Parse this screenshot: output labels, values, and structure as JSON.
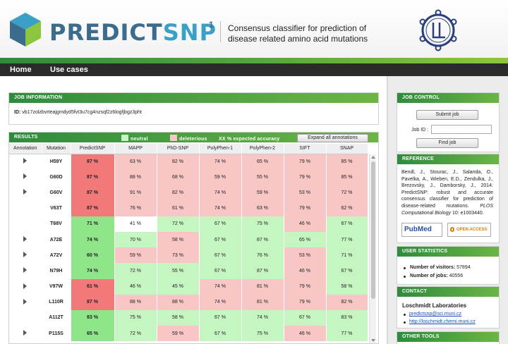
{
  "header": {
    "logo_text_a": "PREDICT",
    "logo_text_b": "SNP",
    "logo_sup": "1",
    "tagline": "Consensus classifier for prediction of disease related amino acid mutations"
  },
  "nav": {
    "items": [
      {
        "label": "Home"
      },
      {
        "label": "Use cases"
      }
    ]
  },
  "job_information": {
    "title": "JOB INFORMATION",
    "id_label": "ID:",
    "id_value": "vb17zolzbvrteajgmdyd5fvt3u7cg4nzsqf2z6logfjbgz3pht"
  },
  "results": {
    "title": "RESULTS",
    "legend": {
      "neutral": "neutral",
      "deleterious": "deleterious",
      "accuracy_label": "XX % expected accuracy",
      "accuracy_bold": "XX %"
    },
    "legend_colors": {
      "neutral": "#c5f5c0",
      "deleterious": "#f9c6c6"
    },
    "expand_button": "Expand all annotations",
    "columns": [
      "Annotation",
      "Mutation",
      "PredictSNP",
      "MAPP",
      "PhD-SNP",
      "PolyPhen-1",
      "PolyPhen-2",
      "SIFT",
      "SNAP"
    ],
    "rows": [
      {
        "annot": true,
        "mutation": "H59Y",
        "cells": [
          [
            "87 %",
            "D"
          ],
          [
            "63 %",
            "D"
          ],
          [
            "82 %",
            "D"
          ],
          [
            "74 %",
            "D"
          ],
          [
            "65 %",
            "D"
          ],
          [
            "79 %",
            "D"
          ],
          [
            "85 %",
            "D"
          ]
        ]
      },
      {
        "annot": true,
        "mutation": "G60D",
        "cells": [
          [
            "87 %",
            "D"
          ],
          [
            "88 %",
            "D"
          ],
          [
            "68 %",
            "D"
          ],
          [
            "59 %",
            "D"
          ],
          [
            "55 %",
            "D"
          ],
          [
            "79 %",
            "D"
          ],
          [
            "85 %",
            "D"
          ]
        ]
      },
      {
        "annot": true,
        "mutation": "G60V",
        "cells": [
          [
            "87 %",
            "D"
          ],
          [
            "91 %",
            "D"
          ],
          [
            "82 %",
            "D"
          ],
          [
            "74 %",
            "D"
          ],
          [
            "59 %",
            "D"
          ],
          [
            "53 %",
            "D"
          ],
          [
            "72 %",
            "D"
          ]
        ]
      },
      {
        "annot": false,
        "mutation": "V63T",
        "cells": [
          [
            "87 %",
            "D"
          ],
          [
            "76 %",
            "D"
          ],
          [
            "61 %",
            "D"
          ],
          [
            "74 %",
            "D"
          ],
          [
            "63 %",
            "D"
          ],
          [
            "79 %",
            "D"
          ],
          [
            "62 %",
            "D"
          ]
        ]
      },
      {
        "annot": false,
        "mutation": "T68V",
        "cells": [
          [
            "71 %",
            "N"
          ],
          [
            "41 %",
            "B"
          ],
          [
            "72 %",
            "N"
          ],
          [
            "67 %",
            "N"
          ],
          [
            "75 %",
            "N"
          ],
          [
            "46 %",
            "D"
          ],
          [
            "67 %",
            "N"
          ]
        ]
      },
      {
        "annot": true,
        "mutation": "A72E",
        "cells": [
          [
            "74 %",
            "N"
          ],
          [
            "70 %",
            "N"
          ],
          [
            "58 %",
            "D"
          ],
          [
            "67 %",
            "N"
          ],
          [
            "87 %",
            "N"
          ],
          [
            "65 %",
            "N"
          ],
          [
            "77 %",
            "N"
          ]
        ]
      },
      {
        "annot": true,
        "mutation": "A72V",
        "cells": [
          [
            "60 %",
            "N"
          ],
          [
            "59 %",
            "D"
          ],
          [
            "73 %",
            "D"
          ],
          [
            "67 %",
            "N"
          ],
          [
            "76 %",
            "N"
          ],
          [
            "53 %",
            "D"
          ],
          [
            "71 %",
            "N"
          ]
        ]
      },
      {
        "annot": true,
        "mutation": "N79H",
        "cells": [
          [
            "74 %",
            "N"
          ],
          [
            "72 %",
            "N"
          ],
          [
            "55 %",
            "N"
          ],
          [
            "67 %",
            "N"
          ],
          [
            "87 %",
            "N"
          ],
          [
            "46 %",
            "D"
          ],
          [
            "67 %",
            "N"
          ]
        ]
      },
      {
        "annot": true,
        "mutation": "V97W",
        "cells": [
          [
            "61 %",
            "D"
          ],
          [
            "46 %",
            "N"
          ],
          [
            "45 %",
            "N"
          ],
          [
            "74 %",
            "D"
          ],
          [
            "81 %",
            "D"
          ],
          [
            "79 %",
            "D"
          ],
          [
            "58 %",
            "N"
          ]
        ]
      },
      {
        "annot": true,
        "mutation": "L110R",
        "cells": [
          [
            "87 %",
            "D"
          ],
          [
            "88 %",
            "D"
          ],
          [
            "88 %",
            "D"
          ],
          [
            "74 %",
            "D"
          ],
          [
            "81 %",
            "D"
          ],
          [
            "79 %",
            "D"
          ],
          [
            "82 %",
            "D"
          ]
        ]
      },
      {
        "annot": false,
        "mutation": "A112T",
        "cells": [
          [
            "83 %",
            "N"
          ],
          [
            "75 %",
            "N"
          ],
          [
            "58 %",
            "N"
          ],
          [
            "67 %",
            "N"
          ],
          [
            "74 %",
            "N"
          ],
          [
            "67 %",
            "N"
          ],
          [
            "83 %",
            "N"
          ]
        ]
      },
      {
        "annot": true,
        "mutation": "P115S",
        "cells": [
          [
            "65 %",
            "N"
          ],
          [
            "72 %",
            "N"
          ],
          [
            "59 %",
            "D"
          ],
          [
            "67 %",
            "N"
          ],
          [
            "75 %",
            "N"
          ],
          [
            "46 %",
            "D"
          ],
          [
            "77 %",
            "N"
          ]
        ]
      }
    ]
  },
  "sidebar": {
    "job_control": {
      "title": "JOB CONTROL",
      "submit_label": "Submit job",
      "job_id_label": "Job ID :",
      "job_id_value": "",
      "find_label": "Find job"
    },
    "reference": {
      "title": "REFERENCE",
      "text": "Bendl, J., Stourac, J., Salanda, O., Pavelka, A., Wieben, E.D., Zendulka, J., Brezovsky, J., Damborsky, J., 2014: PredictSNP: robust and accurate consensus classifier for prediction of disease-related mutations.",
      "journal": "PLOS Computational Biology",
      "journal_tail": " 10: e1003440.",
      "pubmed_label": "PubMed",
      "open_access_label": "OPEN ACCESS"
    },
    "user_statistics": {
      "title": "USER STATISTICS",
      "visitors_label": "Number of visitors:",
      "visitors_value": "57894",
      "jobs_label": "Number of jobs:",
      "jobs_value": "40556"
    },
    "contact": {
      "title": "CONTACT",
      "org": "Loschmidt Laboratories",
      "email": "predictsnp@sci.muni.cz",
      "url": "http://loschmidt.chemi.muni.cz"
    },
    "other_tools": {
      "title": "OTHER TOOLS"
    }
  }
}
